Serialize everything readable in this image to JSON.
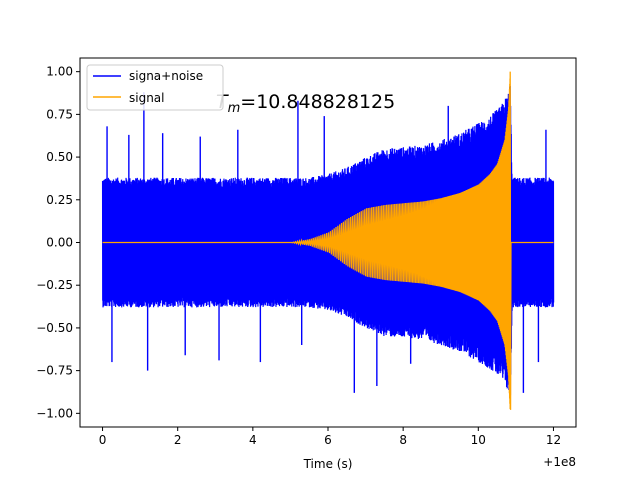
{
  "chart_data": {
    "type": "line",
    "title": "",
    "xlabel": "Time (s)",
    "ylabel": "",
    "x_offset_label": "+1e8",
    "xlim": [
      -0.6,
      12.6
    ],
    "ylim": [
      -1.08,
      1.08
    ],
    "x_ticks": [
      0,
      2,
      4,
      6,
      8,
      10,
      12
    ],
    "x_tick_labels": [
      "0",
      "2",
      "4",
      "6",
      "8",
      "10",
      "12"
    ],
    "y_ticks": [
      1.0,
      0.75,
      0.5,
      0.25,
      0.0,
      -0.25,
      -0.5,
      -0.75,
      -1.0
    ],
    "y_tick_labels": [
      "1.00",
      "0.75",
      "0.50",
      "0.25",
      "0.00",
      "−0.25",
      "−0.50",
      "−0.75",
      "−1.00"
    ],
    "grid": false,
    "legend_position": "top-left",
    "annotation": {
      "text_main": "T",
      "text_sub": "m",
      "text_value": "=10.848828125"
    },
    "series": [
      {
        "name": "signa+noise",
        "color": "#0000ff",
        "envelope": {
          "x": [
            0,
            1,
            2,
            3,
            4,
            5,
            5.5,
            6,
            6.5,
            7,
            7.5,
            8,
            8.5,
            9,
            9.5,
            10,
            10.3,
            10.6,
            10.8,
            10.85,
            10.9,
            11,
            12
          ],
          "upper": [
            0.38,
            0.38,
            0.38,
            0.38,
            0.38,
            0.38,
            0.38,
            0.4,
            0.44,
            0.5,
            0.55,
            0.56,
            0.57,
            0.6,
            0.64,
            0.7,
            0.74,
            0.8,
            0.88,
            0.96,
            0.38,
            0.38,
            0.38
          ],
          "lower": [
            -0.38,
            -0.38,
            -0.38,
            -0.38,
            -0.38,
            -0.38,
            -0.38,
            -0.4,
            -0.44,
            -0.5,
            -0.55,
            -0.56,
            -0.57,
            -0.6,
            -0.64,
            -0.7,
            -0.74,
            -0.8,
            -0.88,
            -0.93,
            -0.38,
            -0.38,
            -0.38
          ]
        },
        "spikes": [
          {
            "x": 0.12,
            "y": 0.68
          },
          {
            "x": 0.25,
            "y": -0.7
          },
          {
            "x": 0.7,
            "y": 0.63
          },
          {
            "x": 1.1,
            "y": 0.88
          },
          {
            "x": 1.2,
            "y": -0.75
          },
          {
            "x": 1.6,
            "y": 0.64
          },
          {
            "x": 2.2,
            "y": -0.66
          },
          {
            "x": 2.6,
            "y": 0.62
          },
          {
            "x": 3.1,
            "y": -0.69
          },
          {
            "x": 3.6,
            "y": 0.66
          },
          {
            "x": 4.2,
            "y": -0.7
          },
          {
            "x": 5.2,
            "y": 0.83
          },
          {
            "x": 5.3,
            "y": -0.6
          },
          {
            "x": 5.9,
            "y": 0.74
          },
          {
            "x": 6.7,
            "y": -0.88
          },
          {
            "x": 7.3,
            "y": -0.84
          },
          {
            "x": 8.2,
            "y": -0.71
          },
          {
            "x": 9.2,
            "y": 0.8
          },
          {
            "x": 11.2,
            "y": -0.88
          },
          {
            "x": 11.8,
            "y": 0.66
          },
          {
            "x": 11.6,
            "y": -0.7
          }
        ]
      },
      {
        "name": "signal",
        "color": "#ffa500",
        "envelope": {
          "x": [
            0,
            5.0,
            5.5,
            6.0,
            6.5,
            7.0,
            7.5,
            8.0,
            8.5,
            9.0,
            9.5,
            10.0,
            10.3,
            10.5,
            10.7,
            10.8,
            10.85
          ],
          "amplitude": [
            0,
            0,
            0.02,
            0.06,
            0.14,
            0.2,
            0.22,
            0.23,
            0.24,
            0.26,
            0.29,
            0.34,
            0.4,
            0.46,
            0.6,
            0.78,
            1.0
          ]
        },
        "merger_time": 10.848828125,
        "after_merger": 0
      }
    ]
  }
}
